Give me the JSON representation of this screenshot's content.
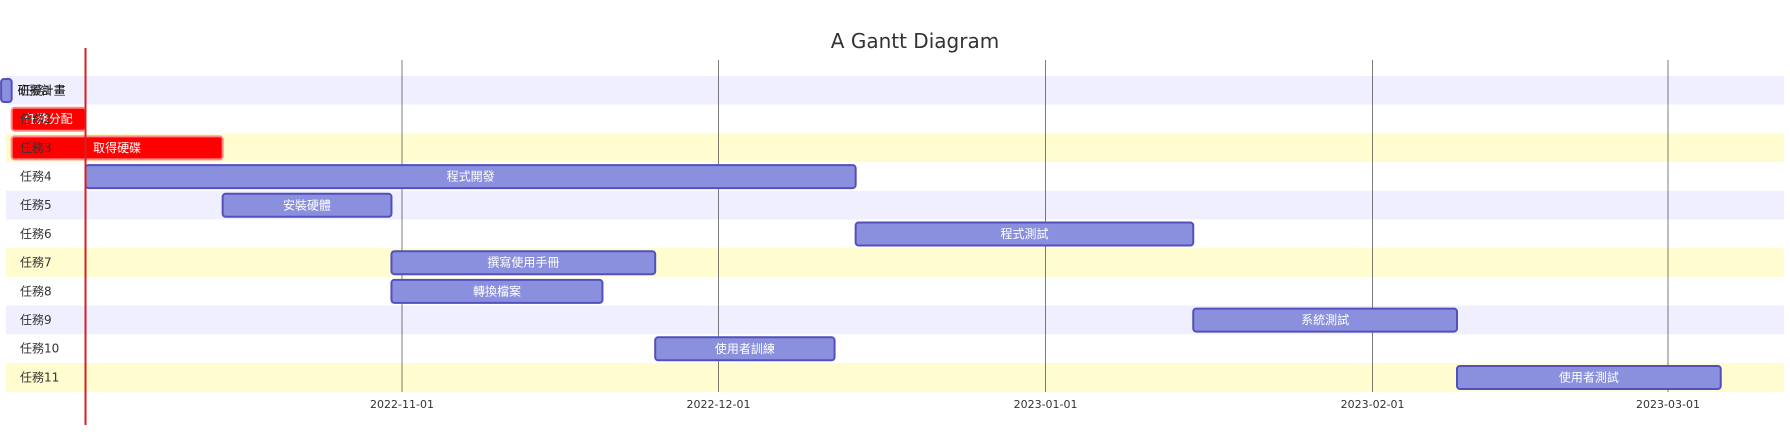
{
  "chart_data": {
    "type": "gantt",
    "title": "A Gantt Diagram",
    "today": "2022-10-02",
    "x_ticks": [
      "2022-11-01",
      "2022-12-01",
      "2023-01-01",
      "2023-02-01",
      "2023-03-01"
    ],
    "rows": [
      {
        "label": "任務1",
        "band": "#efefff"
      },
      {
        "label": "任務2",
        "band": "#ffffff"
      },
      {
        "label": "任務3",
        "band": "#fffcd0"
      },
      {
        "label": "任務4",
        "band": "#ffffff"
      },
      {
        "label": "任務5",
        "band": "#efefff"
      },
      {
        "label": "任務6",
        "band": "#ffffff"
      },
      {
        "label": "任務7",
        "band": "#fffcd0"
      },
      {
        "label": "任務8",
        "band": "#ffffff"
      },
      {
        "label": "任務9",
        "band": "#efefff"
      },
      {
        "label": "任務10",
        "band": "#ffffff"
      },
      {
        "label": "任務11",
        "band": "#fffcd0"
      }
    ],
    "tasks": [
      {
        "name": "研擬計畫",
        "start": "2022-09-24",
        "end": "2022-09-25",
        "status": "normal"
      },
      {
        "name": "任務分配",
        "start": "2022-09-25",
        "end": "2022-10-02",
        "status": "critical"
      },
      {
        "name": "取得硬碟",
        "start": "2022-09-25",
        "end": "2022-10-15",
        "status": "critical"
      },
      {
        "name": "程式開發",
        "start": "2022-10-02",
        "end": "2022-12-14",
        "status": "normal"
      },
      {
        "name": "安裝硬體",
        "start": "2022-10-15",
        "end": "2022-10-31",
        "status": "normal"
      },
      {
        "name": "程式測試",
        "start": "2022-12-14",
        "end": "2023-01-15",
        "status": "normal"
      },
      {
        "name": "撰寫使用手冊",
        "start": "2022-10-31",
        "end": "2022-11-25",
        "status": "normal"
      },
      {
        "name": "轉換檔案",
        "start": "2022-10-31",
        "end": "2022-11-20",
        "status": "normal"
      },
      {
        "name": "系統測試",
        "start": "2023-01-15",
        "end": "2023-02-09",
        "status": "normal"
      },
      {
        "name": "使用者訓練",
        "start": "2022-11-25",
        "end": "2022-12-12",
        "status": "normal"
      },
      {
        "name": "使用者測試",
        "start": "2023-02-09",
        "end": "2023-03-06",
        "status": "normal"
      }
    ],
    "colors": {
      "task_fill": "#8a90dd",
      "task_stroke": "#534fbc",
      "critical_fill": "#ff0000",
      "critical_stroke": "#ff8888",
      "today_line": "#d42020",
      "grid": "#333333"
    }
  }
}
